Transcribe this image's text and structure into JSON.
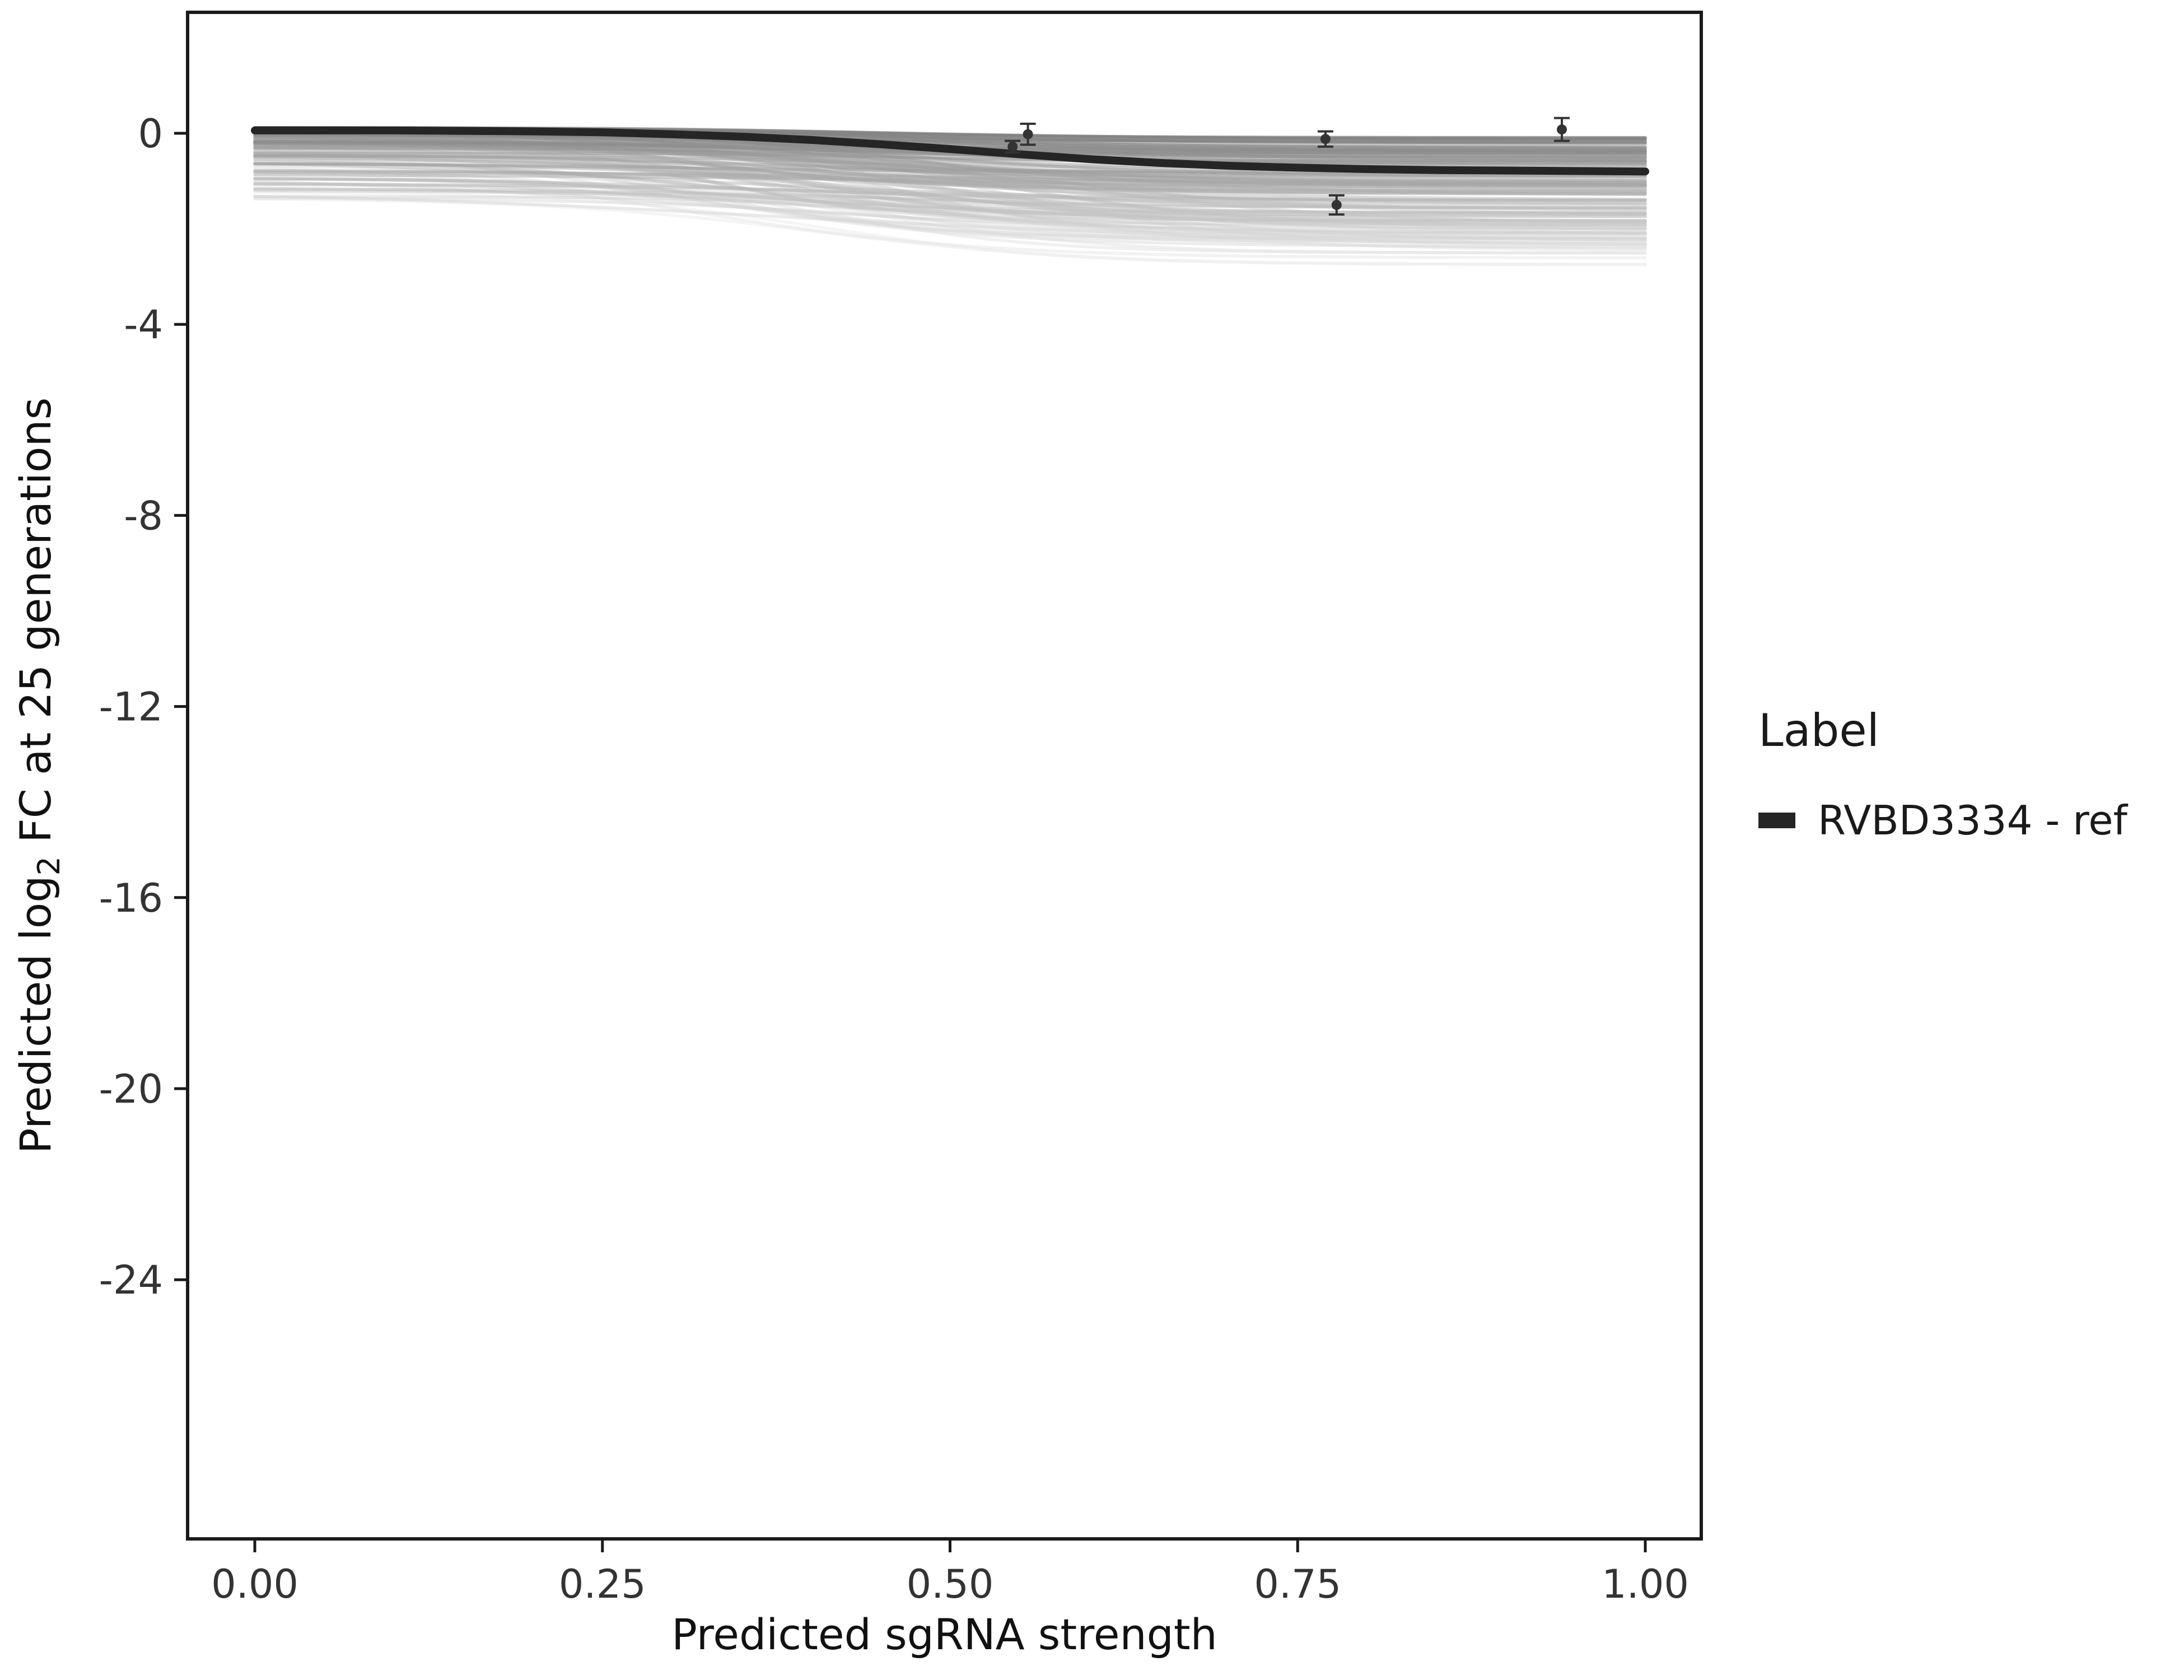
{
  "chart_data": {
    "type": "line",
    "title": "",
    "xlabel": "Predicted sgRNA strength",
    "ylabel": "Predicted log2 FC at 25 generations",
    "ylabel_parts": {
      "prefix": "Predicted  log",
      "sub": "2",
      "suffix": " FC at 25 generations"
    },
    "xlim": [
      0,
      1
    ],
    "ylim": [
      -29.4,
      2.5
    ],
    "x_tick_values": [
      0,
      0.25,
      0.5,
      0.75,
      1
    ],
    "x_tick_labels": [
      "0.00",
      "0.25",
      "0.50",
      "0.75",
      "1.00"
    ],
    "y_tick_values": [
      0,
      -4,
      -8,
      -12,
      -16,
      -20,
      -24
    ],
    "y_tick_labels": [
      "0",
      "-4",
      "-8",
      "-12",
      "-16",
      "-20",
      "-24"
    ],
    "grid": false,
    "legend_position": "right",
    "series": [
      {
        "name": "RVBD3334 - ref",
        "color": "#252525",
        "width": 14,
        "x": [
          0,
          0.05,
          0.1,
          0.15,
          0.2,
          0.25,
          0.3,
          0.35,
          0.4,
          0.45,
          0.5,
          0.55,
          0.6,
          0.65,
          0.7,
          0.75,
          0.8,
          0.85,
          0.9,
          0.95,
          1.0
        ],
        "y": [
          0.06,
          0.06,
          0.06,
          0.05,
          0.04,
          0.02,
          -0.02,
          -0.07,
          -0.14,
          -0.23,
          -0.33,
          -0.44,
          -0.54,
          -0.62,
          -0.68,
          -0.72,
          -0.75,
          -0.77,
          -0.78,
          -0.79,
          -0.8
        ]
      }
    ],
    "ensemble": {
      "description": "posterior sample curves",
      "count": 120,
      "seed": 42,
      "color_dark": 120,
      "color_light": 235,
      "opacity": 0.5,
      "stroke_width": 5.5,
      "start_top": 0.12,
      "start_spread": 1.5,
      "drop_min": 0.2,
      "drop_max": 2.2,
      "end_floor": -2.75,
      "mid_center": 0.42,
      "mid_jitter": 0.25,
      "steep_min": 6,
      "steep_max": 14
    },
    "points": [
      {
        "x": 0.545,
        "y": -0.28,
        "err": 0.12
      },
      {
        "x": 0.556,
        "y": -0.02,
        "err": 0.22
      },
      {
        "x": 0.77,
        "y": -0.12,
        "err": 0.16
      },
      {
        "x": 0.778,
        "y": -1.5,
        "err": 0.2
      },
      {
        "x": 0.94,
        "y": 0.08,
        "err": 0.24
      }
    ],
    "point_color": "#333333"
  },
  "axes": {
    "xlabel": "Predicted sgRNA strength",
    "ylabel_prefix": "Predicted  log",
    "ylabel_sub": "2",
    "ylabel_suffix": " FC at 25 generations"
  },
  "legend": {
    "title": "Label",
    "items": [
      {
        "label": "RVBD3334 - ref",
        "color": "#252525"
      }
    ]
  },
  "colors": {
    "panel_border": "#1a1a1a",
    "tick_label": "#333333",
    "axis_title": "#111111",
    "background": "#ffffff"
  }
}
